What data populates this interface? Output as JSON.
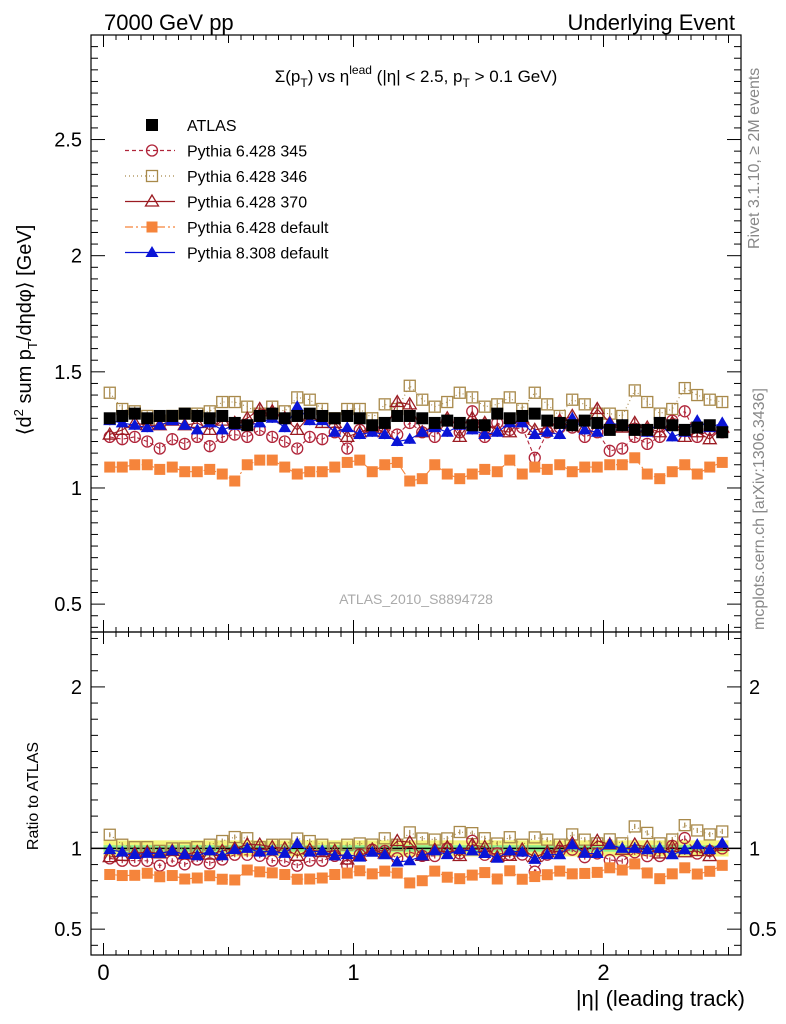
{
  "header": {
    "left": "7000 GeV pp",
    "right": "Underlying Event"
  },
  "side_labels": {
    "rivet": "Rivet 3.1.10, ≥ 2M events",
    "mcplots": "mcplots.cern.ch [arXiv:1306.3436]"
  },
  "watermark": "ATLAS_2010_S8894728",
  "colors": {
    "atlas": "#000000",
    "p345": "#b0253a",
    "p346": "#a8894a",
    "p370": "#9b1b22",
    "pdef": "#f5843b",
    "p8": "#0a14d6",
    "band_green": "#8ef08e",
    "band_yellow": "#f4f47a"
  },
  "chart_data": [
    {
      "type": "scatter",
      "title": "Σ(p_T) vs η^lead (|η| < 2.5, p_T > 0.1 GeV)",
      "ylabel": "⟨d² sum p_T/dηdφ⟩ [GeV]",
      "ylim": [
        0.38,
        2.95
      ],
      "yticks": [
        0.5,
        1,
        1.5,
        2,
        2.5
      ],
      "x": [
        0.025,
        0.075,
        0.125,
        0.175,
        0.225,
        0.275,
        0.325,
        0.375,
        0.425,
        0.475,
        0.525,
        0.575,
        0.625,
        0.675,
        0.725,
        0.775,
        0.825,
        0.875,
        0.925,
        0.975,
        1.025,
        1.075,
        1.125,
        1.175,
        1.225,
        1.275,
        1.325,
        1.375,
        1.425,
        1.475,
        1.525,
        1.575,
        1.625,
        1.675,
        1.725,
        1.775,
        1.825,
        1.875,
        1.925,
        1.975,
        2.025,
        2.075,
        2.125,
        2.175,
        2.225,
        2.275,
        2.325,
        2.375,
        2.425,
        2.475
      ],
      "legend_position": "top-left",
      "series": [
        {
          "name": "ATLAS",
          "color_key": "atlas",
          "marker": "square-filled",
          "values": [
            1.3,
            1.31,
            1.32,
            1.3,
            1.31,
            1.31,
            1.32,
            1.31,
            1.3,
            1.31,
            1.28,
            1.27,
            1.31,
            1.32,
            1.3,
            1.31,
            1.32,
            1.31,
            1.3,
            1.31,
            1.3,
            1.27,
            1.28,
            1.31,
            1.31,
            1.3,
            1.28,
            1.29,
            1.28,
            1.27,
            1.27,
            1.32,
            1.3,
            1.31,
            1.32,
            1.29,
            1.28,
            1.27,
            1.29,
            1.28,
            1.25,
            1.27,
            1.25,
            1.25,
            1.28,
            1.27,
            1.25,
            1.26,
            1.27,
            1.24
          ]
        },
        {
          "name": "Pythia 6.428 345",
          "color_key": "p345",
          "marker": "circle-open",
          "values": [
            1.22,
            1.21,
            1.22,
            1.2,
            1.17,
            1.21,
            1.19,
            1.22,
            1.18,
            1.22,
            1.23,
            1.22,
            1.25,
            1.22,
            1.2,
            1.17,
            1.22,
            1.21,
            1.24,
            1.17,
            1.25,
            1.26,
            1.26,
            1.23,
            1.28,
            1.24,
            1.22,
            1.29,
            1.24,
            1.33,
            1.22,
            1.28,
            1.25,
            1.26,
            1.13,
            1.24,
            1.26,
            1.26,
            1.22,
            1.24,
            1.16,
            1.17,
            1.22,
            1.19,
            1.22,
            1.29,
            1.33,
            1.22,
            1.25,
            1.24
          ]
        },
        {
          "name": "Pythia 6.428 346",
          "color_key": "p346",
          "marker": "square-open",
          "values": [
            1.41,
            1.34,
            1.33,
            1.31,
            1.29,
            1.31,
            1.32,
            1.32,
            1.33,
            1.37,
            1.37,
            1.35,
            1.32,
            1.35,
            1.33,
            1.39,
            1.38,
            1.34,
            1.3,
            1.34,
            1.34,
            1.3,
            1.36,
            1.34,
            1.44,
            1.38,
            1.35,
            1.37,
            1.41,
            1.39,
            1.35,
            1.36,
            1.39,
            1.34,
            1.41,
            1.36,
            1.31,
            1.38,
            1.36,
            1.32,
            1.32,
            1.31,
            1.42,
            1.37,
            1.32,
            1.34,
            1.43,
            1.4,
            1.38,
            1.37
          ]
        },
        {
          "name": "Pythia 6.428 370",
          "color_key": "p370",
          "marker": "triangle-open",
          "values": [
            1.23,
            1.25,
            1.28,
            1.27,
            1.27,
            1.29,
            1.27,
            1.28,
            1.25,
            1.29,
            1.28,
            1.3,
            1.34,
            1.33,
            1.3,
            1.25,
            1.31,
            1.28,
            1.28,
            1.22,
            1.24,
            1.26,
            1.24,
            1.37,
            1.36,
            1.24,
            1.27,
            1.3,
            1.22,
            1.3,
            1.28,
            1.25,
            1.24,
            1.3,
            1.25,
            1.26,
            1.29,
            1.31,
            1.26,
            1.34,
            1.28,
            1.26,
            1.28,
            1.26,
            1.24,
            1.28,
            1.22,
            1.24,
            1.21,
            1.26
          ]
        },
        {
          "name": "Pythia 6.428 default",
          "color_key": "pdef",
          "marker": "square-filled",
          "values": [
            1.09,
            1.09,
            1.1,
            1.1,
            1.08,
            1.09,
            1.07,
            1.07,
            1.08,
            1.06,
            1.03,
            1.1,
            1.12,
            1.12,
            1.09,
            1.06,
            1.07,
            1.07,
            1.09,
            1.11,
            1.12,
            1.07,
            1.1,
            1.11,
            1.03,
            1.04,
            1.1,
            1.06,
            1.04,
            1.06,
            1.08,
            1.07,
            1.12,
            1.06,
            1.09,
            1.08,
            1.1,
            1.07,
            1.09,
            1.09,
            1.1,
            1.1,
            1.13,
            1.06,
            1.04,
            1.07,
            1.1,
            1.06,
            1.09,
            1.11
          ]
        },
        {
          "name": "Pythia 8.308 default",
          "color_key": "p8",
          "marker": "triangle-filled",
          "values": [
            1.29,
            1.28,
            1.27,
            1.26,
            1.27,
            1.29,
            1.27,
            1.25,
            1.28,
            1.25,
            1.27,
            1.27,
            1.28,
            1.3,
            1.26,
            1.35,
            1.29,
            1.29,
            1.24,
            1.26,
            1.23,
            1.24,
            1.23,
            1.2,
            1.21,
            1.24,
            1.26,
            1.24,
            1.27,
            1.25,
            1.23,
            1.24,
            1.28,
            1.28,
            1.23,
            1.24,
            1.23,
            1.3,
            1.25,
            1.24,
            1.28,
            1.27,
            1.25,
            1.24,
            1.28,
            1.22,
            1.24,
            1.29,
            1.26,
            1.28
          ]
        }
      ]
    },
    {
      "type": "scatter",
      "ylabel": "Ratio to ATLAS",
      "xlabel": "|η| (leading track)",
      "ylim": [
        0.34,
        2.34
      ],
      "yticks": [
        0.5,
        1,
        2
      ],
      "xlim": [
        -0.05,
        2.55
      ],
      "xticks": [
        0,
        1,
        2
      ],
      "bands": {
        "green": 0.02,
        "yellow": 0.05
      }
    }
  ]
}
